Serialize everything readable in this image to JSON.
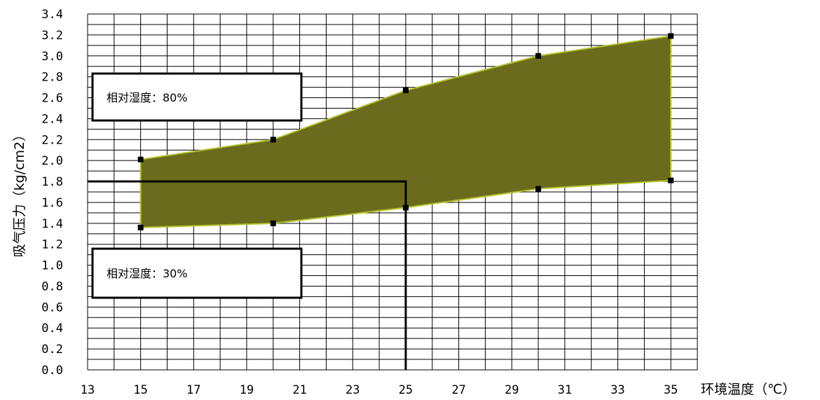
{
  "chart_data": {
    "type": "area",
    "xlabel": "环境温度（℃）",
    "ylabel": "吸气压力（kg/cm2）",
    "xlim": [
      13,
      36
    ],
    "ylim": [
      0,
      3.4
    ],
    "x_ticks": [
      "13",
      "15",
      "17",
      "19",
      "21",
      "23",
      "25",
      "27",
      "29",
      "31",
      "33",
      "35"
    ],
    "y_ticks": [
      "0.0",
      "0.2",
      "0.4",
      "0.6",
      "0.8",
      "1.0",
      "1.2",
      "1.4",
      "1.6",
      "1.8",
      "2.0",
      "2.2",
      "2.4",
      "2.6",
      "2.8",
      "3.0",
      "3.2",
      "3.4"
    ],
    "grid": true,
    "fill_color": "#6b6b1e",
    "edge_color": "#b5c42a",
    "series": [
      {
        "name": "相对湿度：80%",
        "x": [
          15,
          20,
          25,
          30,
          35
        ],
        "y": [
          2.01,
          2.2,
          2.67,
          3.0,
          3.19
        ]
      },
      {
        "name": "相对湿度：30%",
        "x": [
          15,
          20,
          25,
          30,
          35
        ],
        "y": [
          1.36,
          1.4,
          1.55,
          1.73,
          1.81
        ]
      }
    ],
    "annotations": [
      {
        "text": "相对湿度：80%"
      },
      {
        "text": "相对湿度：30%"
      }
    ],
    "reference_point": {
      "x": 25,
      "y": 1.8
    }
  }
}
